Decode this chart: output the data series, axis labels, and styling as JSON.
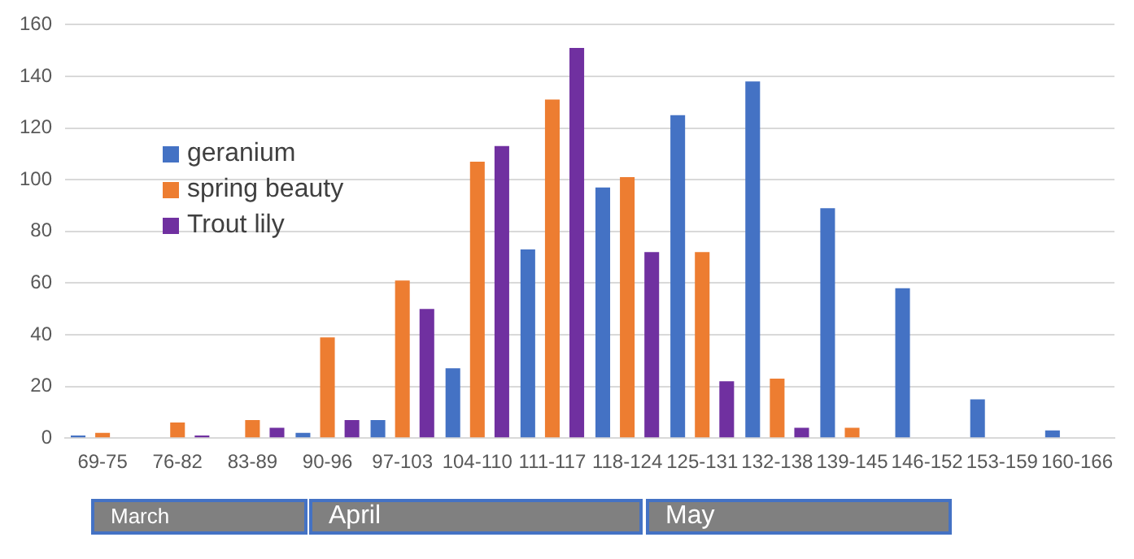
{
  "chart_data": {
    "type": "bar",
    "categories": [
      "69-75",
      "76-82",
      "83-89",
      "90-96",
      "97-103",
      "104-110",
      "111-117",
      "118-124",
      "125-131",
      "132-138",
      "139-145",
      "146-152",
      "153-159",
      "160-166"
    ],
    "series": [
      {
        "name": "geranium",
        "color": "#4472c4",
        "values": [
          1,
          0,
          0,
          2,
          7,
          27,
          73,
          97,
          125,
          138,
          89,
          58,
          15,
          3
        ]
      },
      {
        "name": "spring beauty",
        "color": "#ed7d31",
        "values": [
          2,
          6,
          7,
          39,
          61,
          107,
          131,
          101,
          72,
          23,
          4,
          0,
          0,
          0
        ]
      },
      {
        "name": "Trout lily",
        "color": "#7030a0",
        "values": [
          0,
          1,
          4,
          7,
          50,
          113,
          151,
          72,
          22,
          4,
          0,
          0,
          0,
          0
        ]
      }
    ],
    "ylim": [
      0,
      160
    ],
    "yticks": [
      0,
      20,
      40,
      60,
      80,
      100,
      120,
      140,
      160
    ],
    "grid": "y",
    "legend": "top left",
    "annotations": [
      "March",
      "April",
      "May"
    ]
  }
}
